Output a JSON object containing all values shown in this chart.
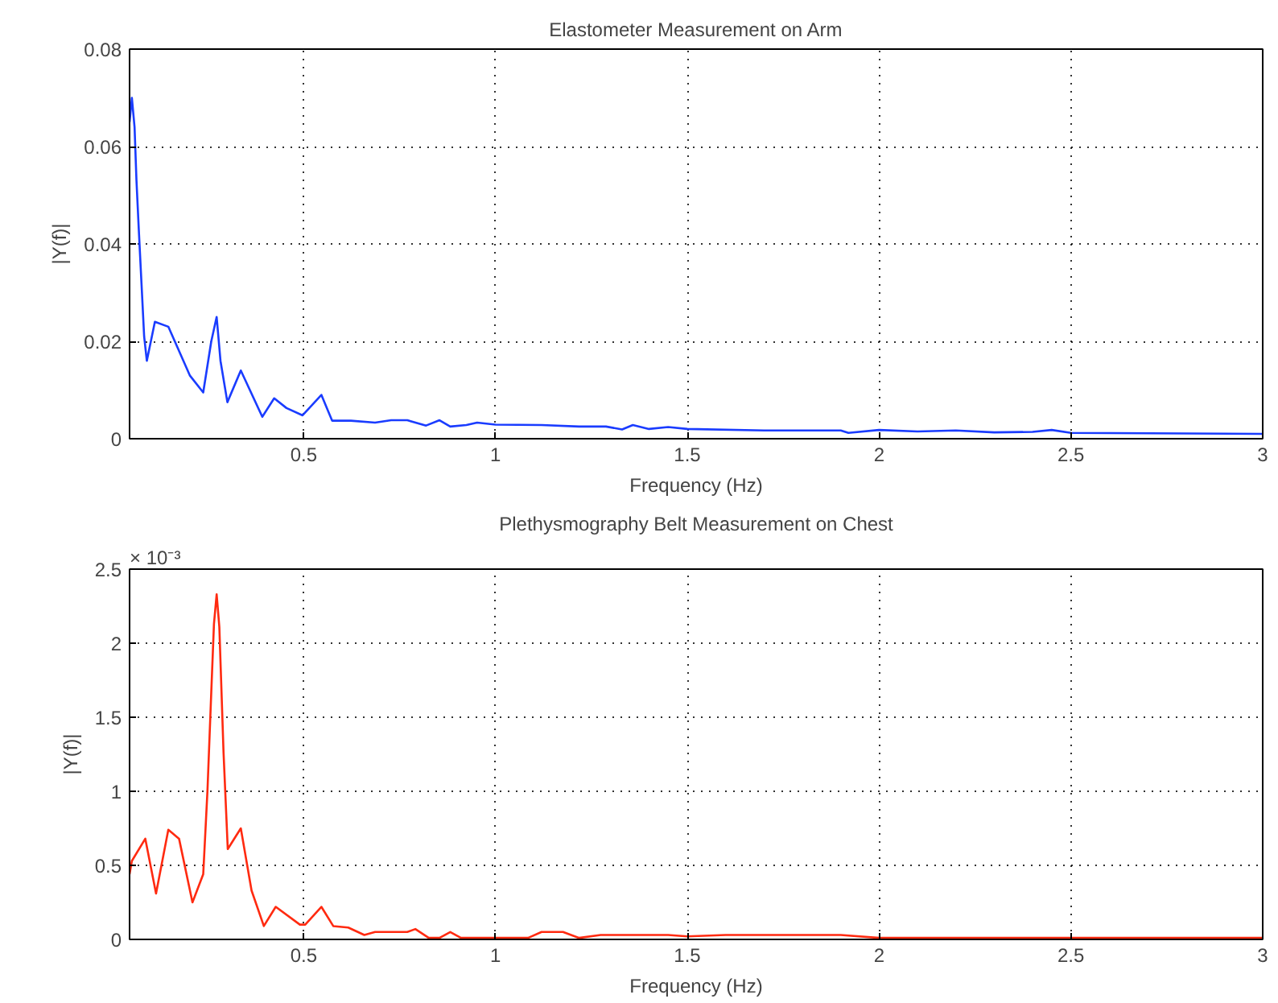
{
  "chart_data": [
    {
      "type": "line",
      "title": "Elastometer Measurement on Arm",
      "xlabel": "Frequency (Hz)",
      "ylabel": "|Y(f)|",
      "xlim": [
        0.046,
        3
      ],
      "xticks": [
        0.5,
        1,
        1.5,
        2,
        2.5,
        3
      ],
      "ylim": [
        0,
        0.08
      ],
      "yticks": [
        0,
        0.02,
        0.04,
        0.06,
        0.08
      ],
      "grid": true,
      "line_style": "solid",
      "series": [
        {
          "color": "#1a3cff",
          "x": [
            0.046,
            0.052,
            0.059,
            0.064,
            0.07,
            0.077,
            0.084,
            0.091,
            0.112,
            0.147,
            0.203,
            0.238,
            0.259,
            0.273,
            0.283,
            0.301,
            0.336,
            0.392,
            0.423,
            0.455,
            0.497,
            0.546,
            0.574,
            0.623,
            0.686,
            0.728,
            0.77,
            0.819,
            0.854,
            0.882,
            0.924,
            0.952,
            1.0,
            1.12,
            1.218,
            1.288,
            1.33,
            1.358,
            1.4,
            1.45,
            1.5,
            1.7,
            1.9,
            1.92,
            2.0,
            2.1,
            2.2,
            2.3,
            2.4,
            2.45,
            2.5,
            3.0
          ],
          "values": [
            0.065,
            0.07,
            0.064,
            0.053,
            0.043,
            0.032,
            0.021,
            0.016,
            0.024,
            0.023,
            0.013,
            0.0095,
            0.02,
            0.025,
            0.016,
            0.0075,
            0.014,
            0.0045,
            0.0083,
            0.0063,
            0.0048,
            0.009,
            0.0037,
            0.0037,
            0.0033,
            0.0038,
            0.0038,
            0.0027,
            0.0038,
            0.0025,
            0.0028,
            0.0033,
            0.0029,
            0.0028,
            0.0025,
            0.0025,
            0.0019,
            0.0028,
            0.002,
            0.0024,
            0.002,
            0.0017,
            0.0017,
            0.0012,
            0.0018,
            0.0015,
            0.0017,
            0.0013,
            0.0014,
            0.0018,
            0.0012,
            0.001
          ]
        }
      ]
    },
    {
      "type": "line",
      "title": "Plethysmography Belt Measurement on Chest",
      "xlabel": "Frequency (Hz)",
      "ylabel": "|Y(f)|",
      "annotations": [
        "× 10⁻³"
      ],
      "xlim": [
        0.046,
        3
      ],
      "xticks": [
        0.5,
        1,
        1.5,
        2,
        2.5,
        3
      ],
      "ylim": [
        0,
        2.5
      ],
      "yticks": [
        0,
        0.5,
        1,
        1.5,
        2,
        2.5
      ],
      "grid": true,
      "line_style": "solid",
      "series": [
        {
          "color": "#ff2a10",
          "x": [
            0.046,
            0.052,
            0.087,
            0.115,
            0.147,
            0.175,
            0.21,
            0.238,
            0.249,
            0.259,
            0.266,
            0.273,
            0.28,
            0.291,
            0.302,
            0.336,
            0.364,
            0.396,
            0.427,
            0.49,
            0.504,
            0.546,
            0.577,
            0.616,
            0.658,
            0.686,
            0.77,
            0.791,
            0.826,
            0.854,
            0.882,
            0.91,
            0.994,
            1.085,
            1.12,
            1.176,
            1.218,
            1.274,
            1.386,
            1.45,
            1.5,
            1.6,
            1.7,
            1.9,
            2.0,
            3.0
          ],
          "values": [
            0.44,
            0.53,
            0.68,
            0.31,
            0.74,
            0.68,
            0.25,
            0.44,
            1.0,
            1.67,
            2.13,
            2.33,
            2.11,
            1.26,
            0.61,
            0.75,
            0.33,
            0.09,
            0.22,
            0.1,
            0.1,
            0.22,
            0.09,
            0.08,
            0.03,
            0.05,
            0.05,
            0.07,
            0.01,
            0.01,
            0.05,
            0.01,
            0.01,
            0.01,
            0.05,
            0.05,
            0.01,
            0.03,
            0.03,
            0.03,
            0.02,
            0.03,
            0.03,
            0.03,
            0.01,
            0.01
          ]
        }
      ]
    }
  ]
}
